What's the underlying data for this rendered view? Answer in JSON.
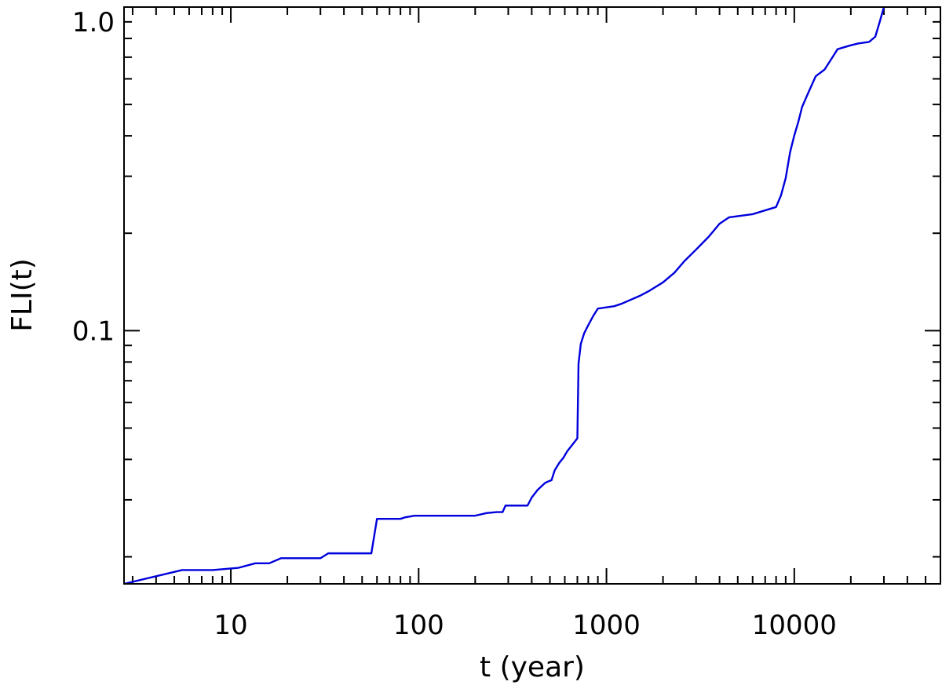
{
  "chart_data": {
    "type": "line",
    "title": "",
    "xlabel": "t  (year)",
    "ylabel": "FLI(t)",
    "xscale": "log",
    "yscale": "log",
    "xlim": [
      2.7,
      60000
    ],
    "ylim": [
      0.0165,
      1.0
    ],
    "grid": false,
    "legend": "none",
    "x_ticks": [
      {
        "value": 10,
        "label": "10"
      },
      {
        "value": 100,
        "label": "100"
      },
      {
        "value": 1000,
        "label": "1000"
      },
      {
        "value": 10000,
        "label": "10000"
      }
    ],
    "y_ticks": [
      {
        "value": 0.1,
        "label": "0.1"
      },
      {
        "value": 1.0,
        "label": "1.0"
      }
    ],
    "series": [
      {
        "color": "#0000dd",
        "x": [
          2.7,
          5.5,
          8,
          11,
          13.5,
          16,
          18.5,
          30,
          33,
          56,
          60,
          80,
          85,
          95,
          200,
          230,
          260,
          280,
          290,
          380,
          400,
          430,
          470,
          490,
          510,
          530,
          560,
          590,
          620,
          660,
          700,
          710,
          730,
          760,
          800,
          850,
          900,
          1100,
          1200,
          1500,
          1700,
          2000,
          2300,
          2600,
          3000,
          3500,
          4000,
          4500,
          6000,
          8000,
          8500,
          9000,
          9500,
          10000,
          10500,
          11000,
          12000,
          13000,
          14500,
          16000,
          17000,
          20000,
          22000,
          25000,
          27000,
          28500,
          30000
        ],
        "y": [
          0.0165,
          0.0182,
          0.0182,
          0.0185,
          0.0191,
          0.0191,
          0.0198,
          0.0198,
          0.0205,
          0.0205,
          0.0262,
          0.0262,
          0.0265,
          0.0268,
          0.0268,
          0.0273,
          0.0275,
          0.0275,
          0.0288,
          0.0288,
          0.0305,
          0.0322,
          0.0338,
          0.0342,
          0.0345,
          0.037,
          0.039,
          0.0405,
          0.0425,
          0.0445,
          0.0465,
          0.079,
          0.091,
          0.098,
          0.104,
          0.111,
          0.117,
          0.119,
          0.121,
          0.128,
          0.133,
          0.141,
          0.151,
          0.164,
          0.178,
          0.195,
          0.214,
          0.224,
          0.229,
          0.241,
          0.262,
          0.296,
          0.356,
          0.401,
          0.441,
          0.491,
          0.551,
          0.611,
          0.641,
          0.701,
          0.741,
          0.762,
          0.772,
          0.78,
          0.81,
          0.9,
          1.0
        ]
      }
    ]
  }
}
